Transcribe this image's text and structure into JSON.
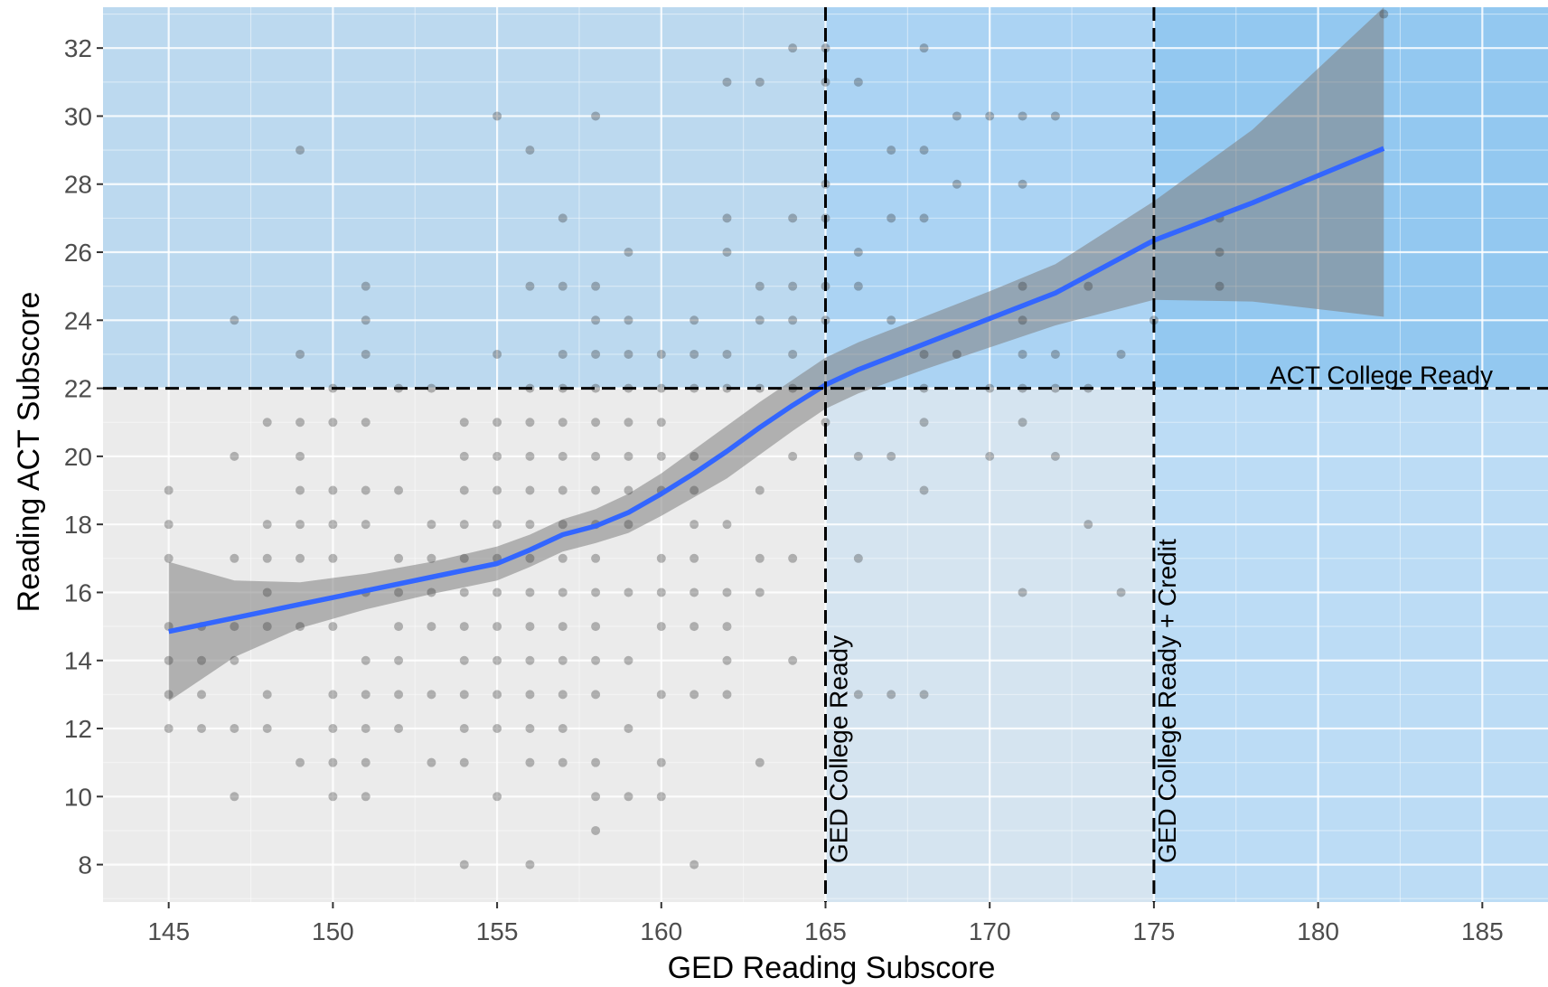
{
  "chart_data": {
    "type": "scatter",
    "title": "",
    "xlabel": "GED Reading Subscore",
    "ylabel": "Reading ACT Subscore",
    "xlim": [
      143,
      187
    ],
    "ylim": [
      6.9,
      33.2
    ],
    "x_ticks": [
      145,
      150,
      155,
      160,
      165,
      170,
      175,
      180,
      185
    ],
    "y_ticks": [
      8,
      10,
      12,
      14,
      16,
      18,
      20,
      22,
      24,
      26,
      28,
      30,
      32
    ],
    "grid": true,
    "regions": [
      {
        "x": [
          143,
          165
        ],
        "y": [
          22,
          33.2
        ],
        "color": "#bcd9ef"
      },
      {
        "x": [
          165,
          175
        ],
        "y": [
          22,
          33.2
        ],
        "color": "#abd3f3"
      },
      {
        "x": [
          175,
          187
        ],
        "y": [
          22,
          33.2
        ],
        "color": "#93c8f0"
      },
      {
        "x": [
          165,
          175
        ],
        "y": [
          6.9,
          22
        ],
        "color": "#d5e4f0"
      },
      {
        "x": [
          175,
          187
        ],
        "y": [
          6.9,
          22
        ],
        "color": "#bcdcf5"
      }
    ],
    "reference_lines": [
      {
        "axis": "y",
        "value": 22,
        "label": "ACT College Ready"
      },
      {
        "axis": "x",
        "value": 165,
        "label": "GED College Ready"
      },
      {
        "axis": "x",
        "value": 175,
        "label": "GED College Ready + Credit"
      }
    ],
    "points": [
      [
        145,
        19
      ],
      [
        145,
        18
      ],
      [
        145,
        17
      ],
      [
        145,
        15
      ],
      [
        145,
        14
      ],
      [
        145,
        13
      ],
      [
        145,
        12
      ],
      [
        146,
        15
      ],
      [
        146,
        14
      ],
      [
        146,
        13
      ],
      [
        146,
        12
      ],
      [
        147,
        24
      ],
      [
        147,
        20
      ],
      [
        147,
        17
      ],
      [
        147,
        15
      ],
      [
        147,
        14
      ],
      [
        147,
        12
      ],
      [
        147,
        10
      ],
      [
        148,
        21
      ],
      [
        148,
        18
      ],
      [
        148,
        17
      ],
      [
        148,
        16
      ],
      [
        148,
        15
      ],
      [
        148,
        13
      ],
      [
        148,
        12
      ],
      [
        149,
        29
      ],
      [
        149,
        23
      ],
      [
        149,
        21
      ],
      [
        149,
        20
      ],
      [
        149,
        19
      ],
      [
        149,
        18
      ],
      [
        149,
        17
      ],
      [
        149,
        15
      ],
      [
        149,
        11
      ],
      [
        150,
        22
      ],
      [
        150,
        21
      ],
      [
        150,
        19
      ],
      [
        150,
        18
      ],
      [
        150,
        17
      ],
      [
        150,
        15
      ],
      [
        150,
        13
      ],
      [
        150,
        12
      ],
      [
        150,
        11
      ],
      [
        150,
        10
      ],
      [
        151,
        25
      ],
      [
        151,
        24
      ],
      [
        151,
        23
      ],
      [
        151,
        21
      ],
      [
        151,
        19
      ],
      [
        151,
        18
      ],
      [
        151,
        16
      ],
      [
        151,
        14
      ],
      [
        151,
        13
      ],
      [
        151,
        12
      ],
      [
        151,
        11
      ],
      [
        151,
        10
      ],
      [
        152,
        22
      ],
      [
        152,
        19
      ],
      [
        152,
        17
      ],
      [
        152,
        16
      ],
      [
        152,
        15
      ],
      [
        152,
        14
      ],
      [
        152,
        13
      ],
      [
        152,
        12
      ],
      [
        153,
        22
      ],
      [
        153,
        18
      ],
      [
        153,
        17
      ],
      [
        153,
        16
      ],
      [
        153,
        15
      ],
      [
        153,
        13
      ],
      [
        153,
        11
      ],
      [
        154,
        21
      ],
      [
        154,
        20
      ],
      [
        154,
        19
      ],
      [
        154,
        18
      ],
      [
        154,
        17
      ],
      [
        154,
        16
      ],
      [
        154,
        15
      ],
      [
        154,
        14
      ],
      [
        154,
        13
      ],
      [
        154,
        12
      ],
      [
        154,
        11
      ],
      [
        154,
        8
      ],
      [
        155,
        30
      ],
      [
        155,
        23
      ],
      [
        155,
        21
      ],
      [
        155,
        20
      ],
      [
        155,
        19
      ],
      [
        155,
        18
      ],
      [
        155,
        17
      ],
      [
        155,
        16
      ],
      [
        155,
        15
      ],
      [
        155,
        14
      ],
      [
        155,
        13
      ],
      [
        155,
        12
      ],
      [
        155,
        10
      ],
      [
        156,
        29
      ],
      [
        156,
        25
      ],
      [
        156,
        22
      ],
      [
        156,
        21
      ],
      [
        156,
        20
      ],
      [
        156,
        19
      ],
      [
        156,
        18
      ],
      [
        156,
        17
      ],
      [
        156,
        16
      ],
      [
        156,
        15
      ],
      [
        156,
        14
      ],
      [
        156,
        13
      ],
      [
        156,
        12
      ],
      [
        156,
        11
      ],
      [
        156,
        8
      ],
      [
        157,
        27
      ],
      [
        157,
        25
      ],
      [
        157,
        23
      ],
      [
        157,
        22
      ],
      [
        157,
        21
      ],
      [
        157,
        20
      ],
      [
        157,
        19
      ],
      [
        157,
        18
      ],
      [
        157,
        17
      ],
      [
        157,
        16
      ],
      [
        157,
        15
      ],
      [
        157,
        14
      ],
      [
        157,
        13
      ],
      [
        157,
        12
      ],
      [
        157,
        11
      ],
      [
        158,
        30
      ],
      [
        158,
        25
      ],
      [
        158,
        24
      ],
      [
        158,
        23
      ],
      [
        158,
        22
      ],
      [
        158,
        21
      ],
      [
        158,
        20
      ],
      [
        158,
        19
      ],
      [
        158,
        18
      ],
      [
        158,
        17
      ],
      [
        158,
        16
      ],
      [
        158,
        15
      ],
      [
        158,
        14
      ],
      [
        158,
        13
      ],
      [
        158,
        11
      ],
      [
        158,
        10
      ],
      [
        158,
        9
      ],
      [
        159,
        26
      ],
      [
        159,
        24
      ],
      [
        159,
        23
      ],
      [
        159,
        22
      ],
      [
        159,
        21
      ],
      [
        159,
        20
      ],
      [
        159,
        19
      ],
      [
        159,
        18
      ],
      [
        159,
        16
      ],
      [
        159,
        14
      ],
      [
        159,
        12
      ],
      [
        159,
        10
      ],
      [
        160,
        23
      ],
      [
        160,
        22
      ],
      [
        160,
        21
      ],
      [
        160,
        20
      ],
      [
        160,
        19
      ],
      [
        160,
        17
      ],
      [
        160,
        16
      ],
      [
        160,
        15
      ],
      [
        160,
        13
      ],
      [
        160,
        11
      ],
      [
        160,
        10
      ],
      [
        161,
        24
      ],
      [
        161,
        23
      ],
      [
        161,
        22
      ],
      [
        161,
        20
      ],
      [
        161,
        19
      ],
      [
        161,
        18
      ],
      [
        161,
        17
      ],
      [
        161,
        16
      ],
      [
        161,
        15
      ],
      [
        161,
        13
      ],
      [
        161,
        8
      ],
      [
        162,
        31
      ],
      [
        162,
        27
      ],
      [
        162,
        26
      ],
      [
        162,
        23
      ],
      [
        162,
        22
      ],
      [
        162,
        18
      ],
      [
        162,
        16
      ],
      [
        162,
        15
      ],
      [
        162,
        14
      ],
      [
        162,
        13
      ],
      [
        163,
        31
      ],
      [
        163,
        25
      ],
      [
        163,
        24
      ],
      [
        163,
        22
      ],
      [
        163,
        19
      ],
      [
        163,
        17
      ],
      [
        163,
        16
      ],
      [
        163,
        11
      ],
      [
        164,
        32
      ],
      [
        164,
        27
      ],
      [
        164,
        25
      ],
      [
        164,
        24
      ],
      [
        164,
        23
      ],
      [
        164,
        22
      ],
      [
        164,
        20
      ],
      [
        164,
        17
      ],
      [
        164,
        14
      ],
      [
        165,
        32
      ],
      [
        165,
        31
      ],
      [
        165,
        28
      ],
      [
        165,
        27
      ],
      [
        165,
        25
      ],
      [
        165,
        24
      ],
      [
        165,
        21
      ],
      [
        166,
        31
      ],
      [
        166,
        26
      ],
      [
        166,
        25
      ],
      [
        166,
        20
      ],
      [
        166,
        17
      ],
      [
        166,
        13
      ],
      [
        167,
        29
      ],
      [
        167,
        27
      ],
      [
        167,
        24
      ],
      [
        167,
        20
      ],
      [
        167,
        13
      ],
      [
        168,
        32
      ],
      [
        168,
        29
      ],
      [
        168,
        27
      ],
      [
        168,
        23
      ],
      [
        168,
        22
      ],
      [
        168,
        21
      ],
      [
        168,
        19
      ],
      [
        168,
        13
      ],
      [
        169,
        30
      ],
      [
        169,
        28
      ],
      [
        169,
        23
      ],
      [
        170,
        30
      ],
      [
        170,
        22
      ],
      [
        170,
        20
      ],
      [
        171,
        30
      ],
      [
        171,
        28
      ],
      [
        171,
        25
      ],
      [
        171,
        24
      ],
      [
        171,
        23
      ],
      [
        171,
        22
      ],
      [
        171,
        21
      ],
      [
        171,
        16
      ],
      [
        172,
        30
      ],
      [
        172,
        23
      ],
      [
        172,
        22
      ],
      [
        172,
        20
      ],
      [
        173,
        25
      ],
      [
        173,
        22
      ],
      [
        173,
        18
      ],
      [
        174,
        23
      ],
      [
        174,
        16
      ],
      [
        175,
        24
      ],
      [
        177,
        27
      ],
      [
        177,
        26
      ],
      [
        177,
        25
      ],
      [
        182,
        33
      ]
    ],
    "smooth_fit": {
      "color": "#3366ff",
      "x": [
        145,
        147,
        149,
        151,
        153,
        155,
        156,
        157,
        158,
        159,
        160,
        161,
        162,
        163,
        164,
        165,
        166,
        168,
        170,
        172,
        175,
        178,
        182
      ],
      "y": [
        14.85,
        15.25,
        15.65,
        16.05,
        16.45,
        16.85,
        17.25,
        17.7,
        17.95,
        18.35,
        18.9,
        19.5,
        20.15,
        20.85,
        21.5,
        22.1,
        22.55,
        23.3,
        24.05,
        24.8,
        26.35,
        27.45,
        29.05
      ],
      "ci_upper": [
        16.9,
        16.35,
        16.3,
        16.55,
        16.9,
        17.35,
        17.7,
        18.15,
        18.45,
        18.9,
        19.5,
        20.2,
        20.9,
        21.6,
        22.25,
        22.9,
        23.35,
        24.1,
        24.85,
        25.65,
        27.5,
        29.6,
        33.2
      ],
      "ci_lower": [
        12.8,
        14.1,
        14.95,
        15.5,
        15.95,
        16.35,
        16.75,
        17.2,
        17.45,
        17.75,
        18.25,
        18.8,
        19.35,
        20.05,
        20.75,
        21.4,
        21.85,
        22.55,
        23.2,
        23.85,
        24.6,
        24.55,
        24.1
      ]
    }
  }
}
